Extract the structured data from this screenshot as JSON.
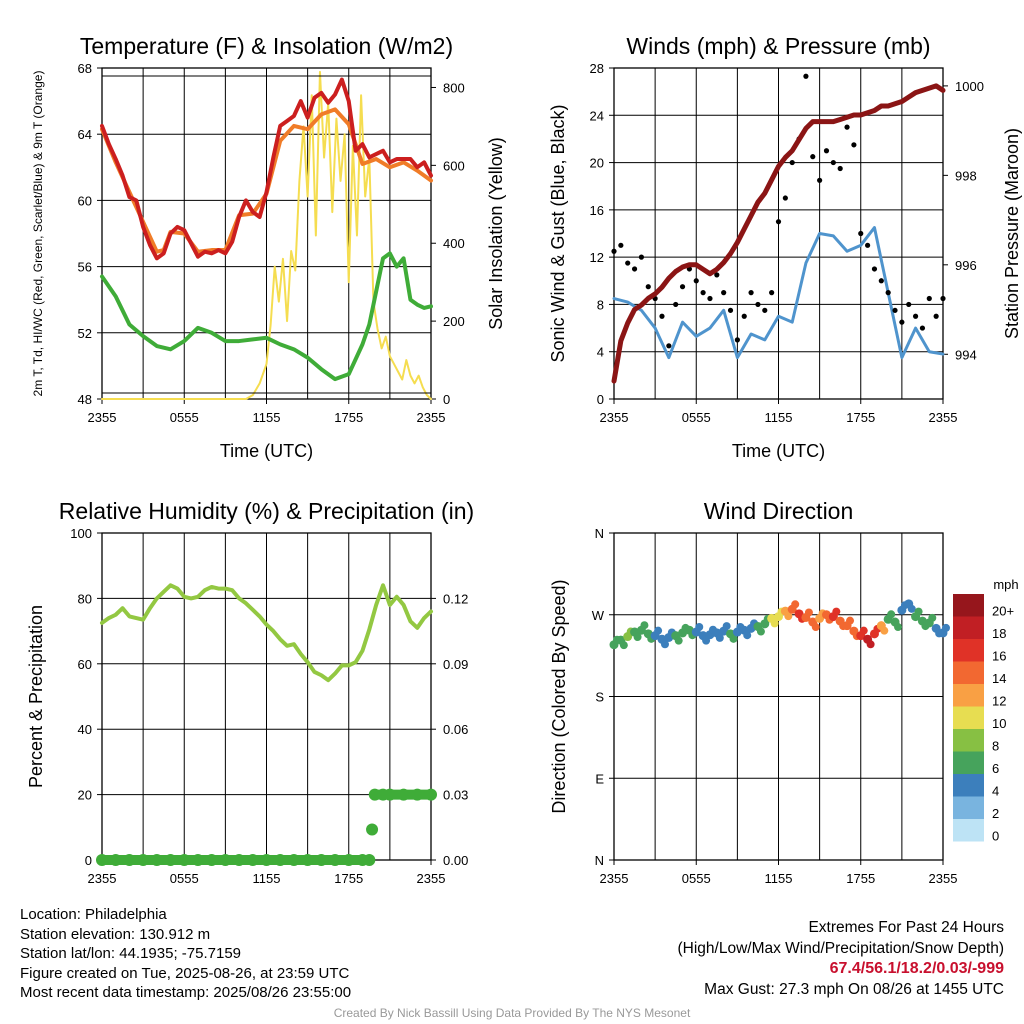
{
  "footer_left": {
    "location": "Location: Philadelphia",
    "elevation": "Station elevation: 130.912 m",
    "latlon": "Station lat/lon: 44.1935; -75.7159",
    "created": "Figure created on Tue, 2025-08-26, at 23:59 UTC",
    "recent": "Most recent data timestamp: 2025/08/26 23:55:00"
  },
  "footer_right": {
    "line1": "Extremes For Past 24 Hours",
    "line2": "(High/Low/Max Wind/Precipitation/Snow Depth)",
    "extremes": "67.4/56.1/18.2/0.03/-999",
    "gust": "Max Gust: 27.3 mph On 08/26 at 1455 UTC"
  },
  "credit": "Created By Nick Bassill Using Data Provided By The NYS Mesonet",
  "chart_data": [
    {
      "type": "line",
      "title": "Temperature (F) & Insolation (W/m2)",
      "xlabel": "Time (UTC)",
      "ylabel": "2m T, Td, HI/WC (Red, Green, Scarlet/Blue) & 9m T (Orange)",
      "ylabel_right": "Solar Insolation (Yellow)",
      "x_ticks": [
        "2355",
        "0555",
        "1155",
        "1755",
        "2355"
      ],
      "ylim": [
        48,
        68
      ],
      "y_ticks": [
        48,
        52,
        56,
        60,
        64,
        68
      ],
      "ylim_right": [
        0,
        850
      ],
      "y_ticks_right": [
        0,
        200,
        400,
        600,
        800
      ],
      "colors": {
        "temp": "#cc1f1f",
        "temp9m": "#f07c28",
        "dewpoint": "#3fac38",
        "solar": "#f5dd50"
      },
      "series": [
        {
          "name": "2m T",
          "axis": "left",
          "x": [
            0,
            0.5,
            1,
            1.5,
            2,
            2.5,
            3,
            3.5,
            4,
            4.5,
            5,
            5.5,
            6,
            6.5,
            7,
            7.5,
            8,
            8.5,
            9,
            9.5,
            10,
            10.5,
            11,
            11.5,
            12,
            12.5,
            13,
            13.5,
            14,
            14.5,
            15,
            15.5,
            16,
            16.5,
            17,
            17.5,
            18,
            18.5,
            19,
            19.5,
            20,
            20.5,
            21,
            21.5,
            22,
            22.5,
            23,
            23.5,
            24
          ],
          "y": [
            64.5,
            63.4,
            62.5,
            61.5,
            60.2,
            60.0,
            58.4,
            57.3,
            56.5,
            56.8,
            58.0,
            58.4,
            58.2,
            57.4,
            56.6,
            56.9,
            56.8,
            57.0,
            56.8,
            57.5,
            59.0,
            60.0,
            59.3,
            59.0,
            60.5,
            62.6,
            64.5,
            64.8,
            65.1,
            66.0,
            65.0,
            66.2,
            66.5,
            65.9,
            66.4,
            67.3,
            66.0,
            63.0,
            63.4,
            62.6,
            62.8,
            63.0,
            62.3,
            62.5,
            62.5,
            62.5,
            62.0,
            62.3,
            61.5
          ]
        },
        {
          "name": "9m T",
          "axis": "left",
          "x": [
            0,
            1,
            2,
            3,
            4,
            4.5,
            5,
            6,
            7,
            8,
            9,
            10,
            11,
            12,
            13,
            14,
            15,
            16,
            17,
            18,
            19,
            20,
            21,
            22,
            23,
            24
          ],
          "y": [
            64.3,
            62.3,
            60.5,
            58.7,
            56.9,
            57.0,
            58.1,
            58.0,
            56.9,
            57.0,
            57.0,
            59.1,
            59.2,
            60.4,
            63.6,
            64.5,
            64.3,
            65.2,
            65.5,
            64.6,
            62.2,
            62.5,
            62.0,
            62.3,
            61.8,
            61.2
          ]
        },
        {
          "name": "2m Td",
          "axis": "left",
          "x": [
            0,
            1,
            2,
            3,
            4,
            5,
            6,
            7,
            8,
            9,
            10,
            11,
            12,
            13,
            14,
            15,
            16,
            17,
            18,
            19,
            19.5,
            20,
            20.5,
            21,
            21.5,
            22,
            22.5,
            23,
            23.5,
            24
          ],
          "y": [
            55.4,
            54.2,
            52.5,
            51.8,
            51.2,
            51.0,
            51.5,
            52.3,
            52.0,
            51.5,
            51.5,
            51.6,
            51.7,
            51.3,
            51.0,
            50.5,
            49.8,
            49.2,
            49.5,
            51.3,
            52.5,
            54.5,
            56.5,
            56.8,
            56.0,
            56.5,
            54.0,
            53.7,
            53.5,
            53.6
          ]
        },
        {
          "name": "Solar Insolation",
          "axis": "right",
          "x": [
            0,
            2,
            4,
            6,
            8,
            10,
            10.5,
            11,
            11.5,
            12,
            12.3,
            12.6,
            12.9,
            13.2,
            13.5,
            13.8,
            14.1,
            14.4,
            14.7,
            15.0,
            15.3,
            15.6,
            15.9,
            16.2,
            16.5,
            16.8,
            17.1,
            17.4,
            17.7,
            18.0,
            18.3,
            18.6,
            18.9,
            19.2,
            19.5,
            19.8,
            20.1,
            20.4,
            20.7,
            21.0,
            21.3,
            21.6,
            21.9,
            22.2,
            22.5,
            22.8,
            23.1,
            23.4,
            23.7,
            24
          ],
          "y": [
            0,
            0,
            0,
            0,
            0,
            0,
            0,
            10,
            40,
            90,
            190,
            340,
            250,
            360,
            200,
            380,
            330,
            560,
            700,
            520,
            780,
            420,
            840,
            620,
            760,
            480,
            720,
            560,
            680,
            300,
            650,
            420,
            780,
            520,
            620,
            250,
            180,
            130,
            160,
            110,
            90,
            70,
            50,
            100,
            60,
            40,
            60,
            30,
            10,
            0
          ]
        }
      ]
    },
    {
      "type": "line",
      "title": "Winds (mph) & Pressure (mb)",
      "xlabel": "Time (UTC)",
      "ylabel": "Sonic Wind & Gust (Blue, Black)",
      "ylabel_right": "Station Pressure (Maroon)",
      "x_ticks": [
        "2355",
        "0555",
        "1155",
        "1755",
        "2355"
      ],
      "ylim": [
        0,
        28
      ],
      "y_ticks": [
        0,
        4,
        8,
        12,
        16,
        20,
        24,
        28
      ],
      "ylim_right": [
        993,
        1000.4
      ],
      "y_ticks_right": [
        994,
        996,
        998,
        1000
      ],
      "colors": {
        "wind": "#4f94cd",
        "gust": "#000000",
        "pressure": "#8b1515"
      },
      "series": [
        {
          "name": "Sonic Wind",
          "axis": "left",
          "x": [
            0,
            1,
            2,
            3,
            4,
            5,
            6,
            7,
            8,
            9,
            10,
            11,
            12,
            13,
            14,
            15,
            16,
            17,
            18,
            19,
            20,
            21,
            22,
            23,
            24
          ],
          "y": [
            8.5,
            8.2,
            7.5,
            6.0,
            3.5,
            6.5,
            5.3,
            6.0,
            7.5,
            3.5,
            5.5,
            5.0,
            7.0,
            6.5,
            11.5,
            14.0,
            13.8,
            12.5,
            13.0,
            14.5,
            9.0,
            3.5,
            6.0,
            4.0,
            3.8
          ]
        },
        {
          "name": "Gust",
          "axis": "left",
          "marker": "dot",
          "x": [
            0,
            0.5,
            1,
            1.5,
            2,
            2.5,
            3,
            3.5,
            4,
            4.5,
            5,
            5.5,
            6,
            6.5,
            7,
            7.5,
            8,
            8.5,
            9,
            9.5,
            10,
            10.5,
            11,
            11.5,
            12,
            12.5,
            13,
            13.5,
            14,
            14.5,
            15,
            15.5,
            16,
            16.5,
            17,
            17.5,
            18,
            18.5,
            19,
            19.5,
            20,
            20.5,
            21,
            21.5,
            22,
            22.5,
            23,
            23.5,
            24
          ],
          "y": [
            12.5,
            13.0,
            11.5,
            11.0,
            12.0,
            9.5,
            8.5,
            7.0,
            4.5,
            8.0,
            9.5,
            11.0,
            10.0,
            9.0,
            8.5,
            10.5,
            9.0,
            7.5,
            5.0,
            7.0,
            9.0,
            8.0,
            7.5,
            9.0,
            15.0,
            17.0,
            20.0,
            22.0,
            27.3,
            20.5,
            18.5,
            21.0,
            20.0,
            19.5,
            23.0,
            21.5,
            14.0,
            13.0,
            11.0,
            10.0,
            9.0,
            7.5,
            6.5,
            8.0,
            7.0,
            6.0,
            8.5,
            7.0,
            8.5
          ]
        },
        {
          "name": "Station Pressure",
          "axis": "right",
          "x": [
            0,
            0.5,
            1,
            1.5,
            2,
            2.5,
            3,
            3.5,
            4,
            4.5,
            5,
            5.5,
            6,
            6.5,
            7,
            7.5,
            8,
            8.5,
            9,
            9.5,
            10,
            10.5,
            11,
            11.5,
            12,
            12.5,
            13,
            13.5,
            14,
            14.5,
            15,
            15.5,
            16,
            16.5,
            17,
            17.5,
            18,
            18.5,
            19,
            19.5,
            20,
            20.5,
            21,
            21.5,
            22,
            22.5,
            23,
            23.5,
            24
          ],
          "y": [
            993.4,
            994.3,
            994.7,
            995.0,
            995.1,
            995.25,
            995.35,
            995.5,
            995.7,
            995.85,
            995.95,
            996.0,
            996.0,
            995.9,
            995.8,
            995.9,
            996.05,
            996.25,
            996.5,
            996.8,
            997.1,
            997.4,
            997.6,
            997.9,
            998.2,
            998.4,
            998.55,
            998.8,
            999.05,
            999.2,
            999.2,
            999.2,
            999.2,
            999.25,
            999.3,
            999.35,
            999.35,
            999.4,
            999.45,
            999.55,
            999.55,
            999.6,
            999.65,
            999.75,
            999.85,
            999.9,
            999.95,
            1000.0,
            999.9
          ]
        }
      ]
    },
    {
      "type": "line",
      "title": "Relative Humidity (%) & Precipitation (in)",
      "xlabel": "",
      "ylabel": "Percent & Precipitation",
      "x_ticks": [
        "2355",
        "0555",
        "1155",
        "1755",
        "2355"
      ],
      "ylim": [
        0,
        100
      ],
      "y_ticks": [
        0,
        20,
        40,
        60,
        80,
        100
      ],
      "ylim_right": [
        0,
        0.15
      ],
      "y_ticks_right": [
        "0.00",
        "0.03",
        "0.06",
        "0.09",
        "0.12"
      ],
      "colors": {
        "rh": "#93c842",
        "precip": "#3fac38"
      },
      "series": [
        {
          "name": "Relative Humidity",
          "axis": "left",
          "x": [
            0,
            0.5,
            1,
            1.5,
            2,
            2.5,
            3,
            3.5,
            4,
            4.5,
            5,
            5.5,
            6,
            6.5,
            7,
            7.5,
            8,
            8.5,
            9,
            9.5,
            10,
            10.5,
            11,
            11.5,
            12,
            12.5,
            13,
            13.5,
            14,
            14.5,
            15,
            15.5,
            16,
            16.5,
            17,
            17.5,
            18,
            18.5,
            19,
            19.5,
            20,
            20.5,
            21,
            21.5,
            22,
            22.5,
            23,
            23.5,
            24
          ],
          "y": [
            72.5,
            74.0,
            75.0,
            77.0,
            74.5,
            74.0,
            73.5,
            77.0,
            80.0,
            82.0,
            84.0,
            83.0,
            80.5,
            80.0,
            80.5,
            82.5,
            83.5,
            83.0,
            83.0,
            82.5,
            80.0,
            78.5,
            76.5,
            74.5,
            72.0,
            70.0,
            67.5,
            65.5,
            66.0,
            63.0,
            60.5,
            57.5,
            56.5,
            55.0,
            57.0,
            59.5,
            59.5,
            60.5,
            64.0,
            70.5,
            78.0,
            84.0,
            78.0,
            80.5,
            78.0,
            73.0,
            71.0,
            74.0,
            76.0
          ]
        },
        {
          "name": "Precipitation",
          "axis": "right",
          "marker": "dot",
          "x": [
            0,
            1,
            2,
            3,
            4,
            5,
            6,
            7,
            8,
            9,
            10,
            11,
            12,
            13,
            14,
            15,
            16,
            17,
            18,
            19,
            19.5,
            19.7,
            19.9,
            20.5,
            21,
            22,
            23,
            24
          ],
          "y": [
            0,
            0,
            0,
            0,
            0,
            0,
            0,
            0,
            0,
            0,
            0,
            0,
            0,
            0,
            0,
            0,
            0,
            0,
            0,
            0,
            0,
            0.014,
            0.03,
            0.03,
            0.03,
            0.03,
            0.03,
            0.03
          ]
        }
      ]
    },
    {
      "type": "scatter",
      "title": "Wind Direction",
      "xlabel": "",
      "ylabel": "Direction (Colored By Speed)",
      "x_ticks": [
        "2355",
        "0555",
        "1155",
        "1755",
        "2355"
      ],
      "y_ticks": [
        "N",
        "E",
        "S",
        "W",
        "N"
      ],
      "ylim": [
        0,
        360
      ],
      "legend_title": "mph",
      "legend_labels": [
        "20+",
        "18",
        "16",
        "14",
        "12",
        "10",
        "8",
        "6",
        "4",
        "2",
        "0"
      ],
      "legend_colors": [
        "#96161c",
        "#c11f24",
        "#e03227",
        "#f26831",
        "#f9a044",
        "#e7dd51",
        "#87c043",
        "#46a35c",
        "#3c7fbc",
        "#79b4df",
        "#bde3f5"
      ],
      "series": [
        {
          "name": "Direction",
          "x": [
            0,
            0.5,
            1,
            1.5,
            2,
            2.5,
            3,
            3.5,
            4,
            4.5,
            5,
            5.5,
            6,
            6.5,
            7,
            7.5,
            8,
            8.5,
            9,
            9.5,
            10,
            10.5,
            11,
            11.5,
            12,
            12.5,
            13,
            13.5,
            14,
            14.5,
            15,
            15.5,
            16,
            16.5,
            17,
            17.5,
            18,
            18.5,
            19,
            19.5,
            20,
            20.5,
            21,
            21.5,
            22,
            22.5,
            23,
            23.5,
            24
          ],
          "y": [
            237,
            242,
            246,
            251,
            253,
            249,
            247,
            243,
            245,
            247,
            250,
            253,
            251,
            247,
            248,
            250,
            252,
            249,
            251,
            253,
            255,
            257,
            260,
            266,
            268,
            274,
            276,
            271,
            267,
            262,
            266,
            270,
            268,
            263,
            258,
            252,
            247,
            243,
            249,
            258,
            265,
            262,
            275,
            282,
            268,
            263,
            261,
            255,
            250
          ],
          "speed": [
            6,
            6,
            7,
            6,
            6,
            5,
            4,
            4,
            4,
            5,
            5,
            5,
            4,
            4,
            3,
            4,
            4,
            5,
            4,
            4,
            4,
            5,
            6,
            9,
            10,
            11,
            14,
            16,
            14,
            13,
            12,
            14,
            15,
            14,
            13,
            14,
            16,
            17,
            15,
            12,
            6,
            5,
            4,
            3,
            5,
            6,
            5,
            4,
            4
          ]
        }
      ]
    }
  ]
}
